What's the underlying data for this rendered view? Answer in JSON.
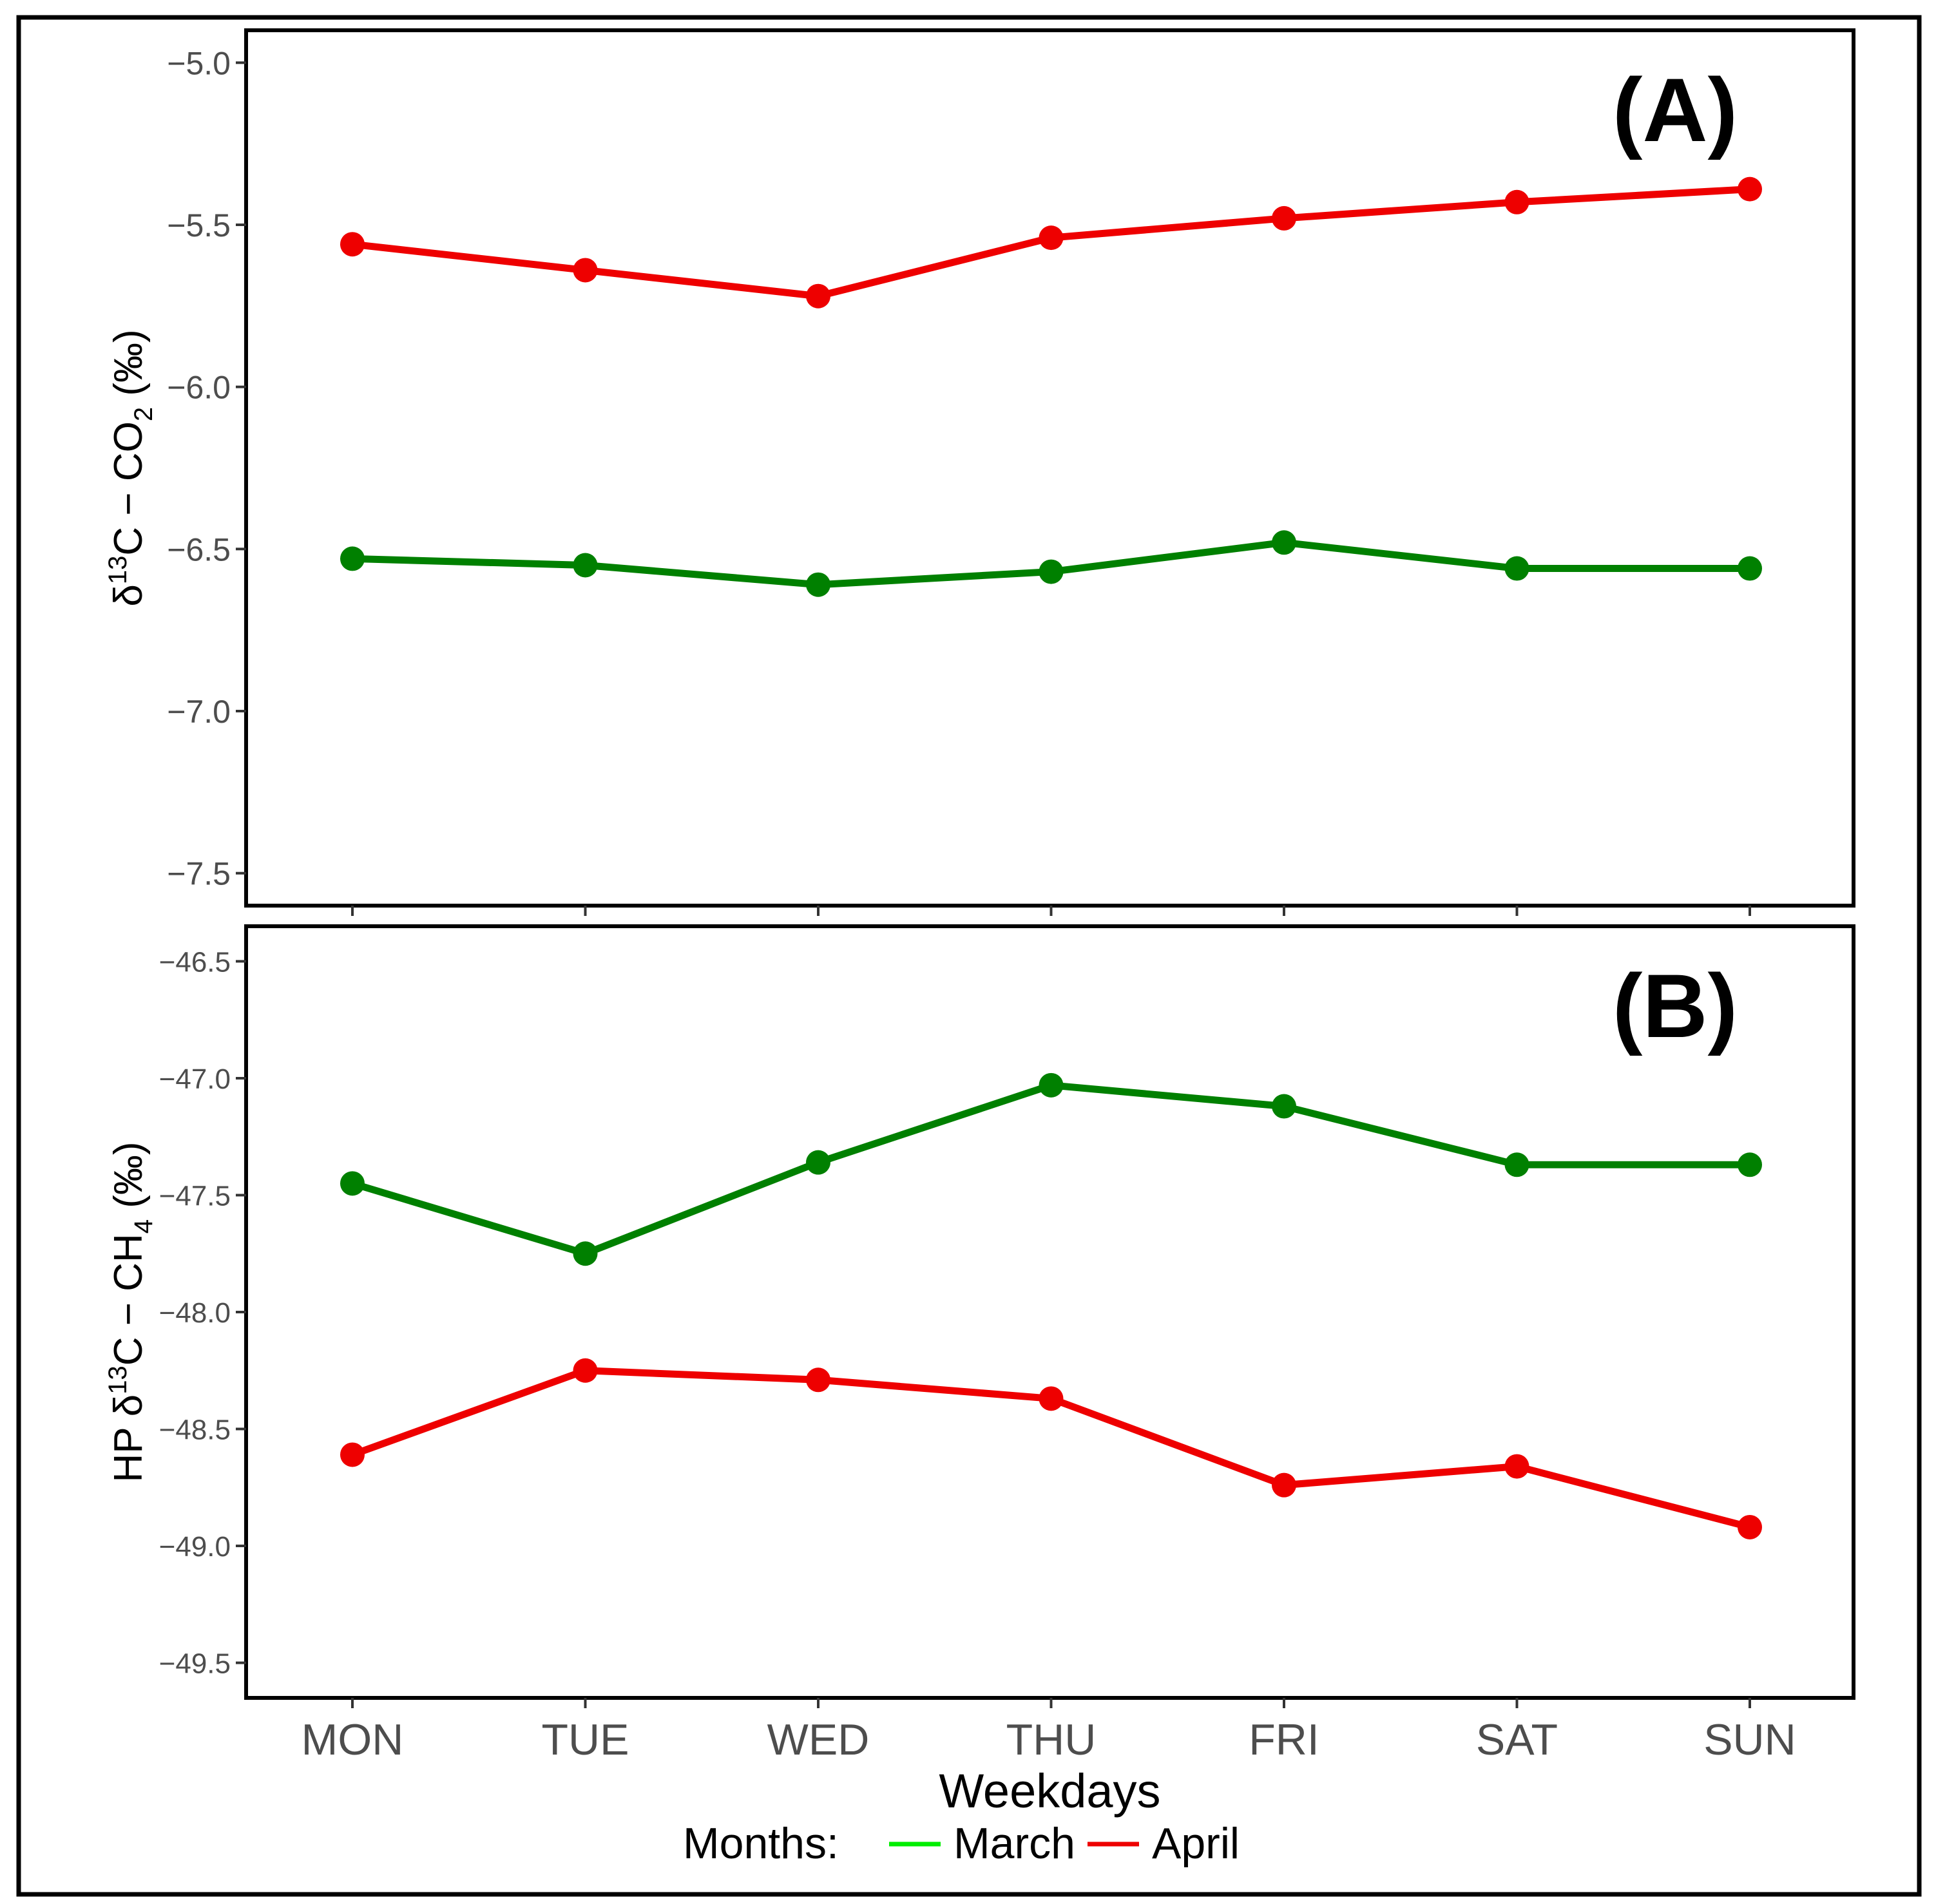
{
  "chart_data": [
    {
      "type": "line",
      "panel_label": "(A)",
      "ylabel": {
        "main": "δ",
        "sup": "13",
        "mid": "C − CO",
        "sub": "2",
        "end": " (‰)"
      },
      "ylim": [
        -7.6,
        -4.9
      ],
      "yticks": [
        -5.0,
        -5.5,
        -6.0,
        -6.5,
        -7.0,
        -7.5
      ],
      "ytick_labels": [
        "−5.0",
        "−5.5",
        "−6.0",
        "−6.5",
        "−7.0",
        "−7.5"
      ],
      "categories": [
        "MON",
        "TUE",
        "WED",
        "THU",
        "FRI",
        "SAT",
        "SUN"
      ],
      "grid": false,
      "series": [
        {
          "name": "March",
          "color": "#008000",
          "values": [
            -6.53,
            -6.55,
            -6.61,
            -6.57,
            -6.48,
            -6.56,
            -6.56
          ]
        },
        {
          "name": "April",
          "color": "#ee0000",
          "values": [
            -5.56,
            -5.64,
            -5.72,
            -5.54,
            -5.48,
            -5.43,
            -5.39
          ]
        }
      ]
    },
    {
      "type": "line",
      "panel_label": "(B)",
      "ylabel": {
        "main": "HP δ",
        "sup": "13",
        "mid": "C − CH",
        "sub": "4",
        "end": " (‰)"
      },
      "ylim": [
        -49.65,
        -46.35
      ],
      "yticks": [
        -46.5,
        -47.0,
        -47.5,
        -48.0,
        -48.5,
        -49.0,
        -49.5
      ],
      "ytick_labels": [
        "−46.5",
        "−47.0",
        "−47.5",
        "−48.0",
        "−48.5",
        "−49.0",
        "−49.5"
      ],
      "categories": [
        "MON",
        "TUE",
        "WED",
        "THU",
        "FRI",
        "SAT",
        "SUN"
      ],
      "xlabel": "Weekdays",
      "grid": false,
      "series": [
        {
          "name": "March",
          "color": "#008000",
          "values": [
            -47.45,
            -47.75,
            -47.36,
            -47.03,
            -47.12,
            -47.37,
            -47.37
          ]
        },
        {
          "name": "April",
          "color": "#ee0000",
          "values": [
            -48.61,
            -48.25,
            -48.29,
            -48.37,
            -48.74,
            -48.66,
            -48.92
          ]
        }
      ]
    }
  ],
  "legend": {
    "title": "Months:",
    "placement": "bottom",
    "items": [
      {
        "label": "March",
        "color": "#00ee00"
      },
      {
        "label": "April",
        "color": "#ee0000"
      }
    ]
  }
}
